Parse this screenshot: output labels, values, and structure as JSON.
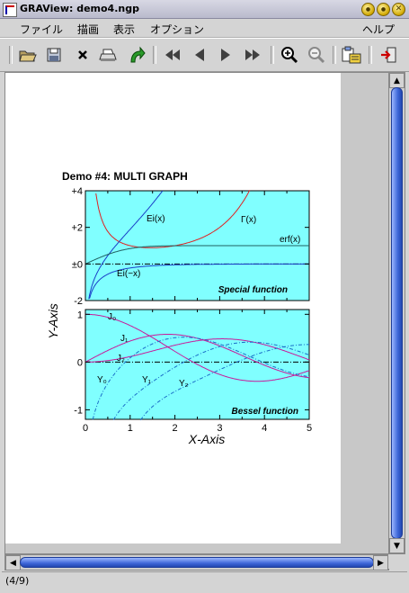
{
  "window": {
    "title": "GRAView: demo4.ngp",
    "buttons": [
      "●",
      "●",
      "✕"
    ]
  },
  "menu": [
    "ファイル",
    "描画",
    "表示",
    "オプション",
    "ヘルプ"
  ],
  "toolbar": [
    "open-icon",
    "save-icon",
    "close-icon",
    "print-icon",
    "redraw-icon",
    "first-page-icon",
    "prev-page-icon",
    "next-page-icon",
    "last-page-icon",
    "zoom-in-icon",
    "zoom-out-icon",
    "clipboard-icon",
    "exit-icon"
  ],
  "status": "(4/9)",
  "chart_data": [
    {
      "type": "line",
      "title": "Demo #4: MULTI GRAPH",
      "ylabel": "Y-Axis",
      "xlabel": "",
      "xlim": [
        0,
        5
      ],
      "ylim": [
        -2,
        4
      ],
      "yticks": [
        "+4",
        "+2",
        "±0",
        "-2"
      ],
      "panel_label": "Special function",
      "background": "#80ffff",
      "series": [
        {
          "name": "Ei(x)",
          "color": "#1a3ec8"
        },
        {
          "name": "Γ(x)",
          "color": "#e02020"
        },
        {
          "name": "erf(x)",
          "color": "#206060"
        },
        {
          "name": "Ei(−x)",
          "color": "#1a3ec8"
        }
      ]
    },
    {
      "type": "line",
      "title": "",
      "xlabel": "X-Axis",
      "ylabel": "",
      "xlim": [
        0,
        5
      ],
      "ylim": [
        -1.2,
        1.1
      ],
      "xticks": [
        "0",
        "1",
        "2",
        "3",
        "4",
        "5"
      ],
      "yticks": [
        "1",
        "0",
        "-1"
      ],
      "panel_label": "Bessel function",
      "background": "#80ffff",
      "series": [
        {
          "name": "J₀",
          "color": "#c81a9a"
        },
        {
          "name": "J₁",
          "color": "#c81a9a"
        },
        {
          "name": "J₂",
          "color": "#c81a9a"
        },
        {
          "name": "Y₀",
          "color": "#1a6ec8"
        },
        {
          "name": "Y₁",
          "color": "#1a6ec8"
        },
        {
          "name": "Y₂",
          "color": "#1a6ec8"
        }
      ]
    }
  ]
}
